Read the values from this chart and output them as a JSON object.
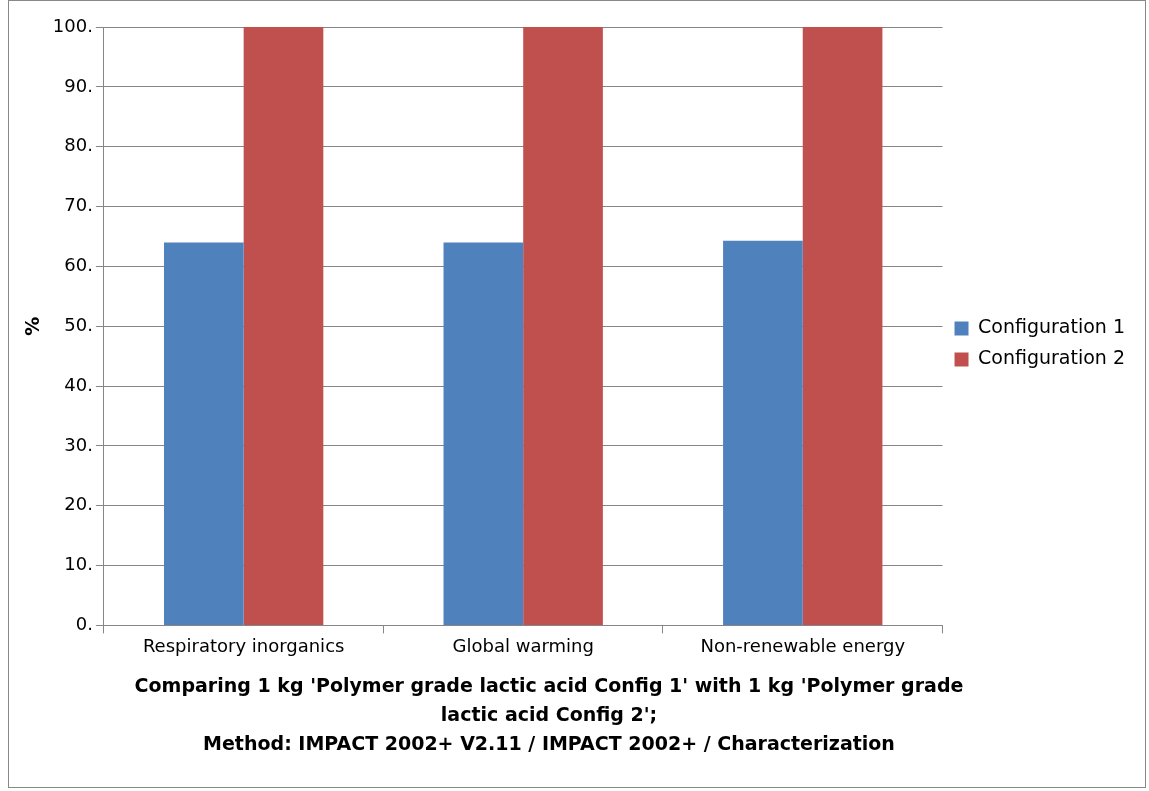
{
  "chart_data": {
    "type": "bar",
    "title": "Comparing 1 kg 'Polymer grade lactic acid Config 1' with 1 kg 'Polymer grade lactic acid Config 2';\nMethod: IMPACT 2002+ V2.11 / IMPACT 2002+ / Characterization",
    "ylabel": "%",
    "categories": [
      "Respiratory inorganics",
      "Global warming",
      "Non-renewable energy"
    ],
    "series": [
      {
        "name": "Configuration 1",
        "color": "#4f81bd",
        "values": [
          64,
          64,
          64.3
        ]
      },
      {
        "name": "Configuration 2",
        "color": "#c0504d",
        "values": [
          100,
          100,
          100
        ]
      }
    ],
    "ylim": [
      0,
      100
    ],
    "yticks": [
      {
        "value": 0,
        "label": "0."
      },
      {
        "value": 10,
        "label": "10."
      },
      {
        "value": 20,
        "label": "20."
      },
      {
        "value": 30,
        "label": "30."
      },
      {
        "value": 40,
        "label": "40."
      },
      {
        "value": 50,
        "label": "50."
      },
      {
        "value": 60,
        "label": "60."
      },
      {
        "value": 70,
        "label": "70."
      },
      {
        "value": 80,
        "label": "80."
      },
      {
        "value": 90,
        "label": "90."
      },
      {
        "value": 100,
        "label": "100."
      }
    ],
    "grid": "y",
    "legend": "right"
  }
}
